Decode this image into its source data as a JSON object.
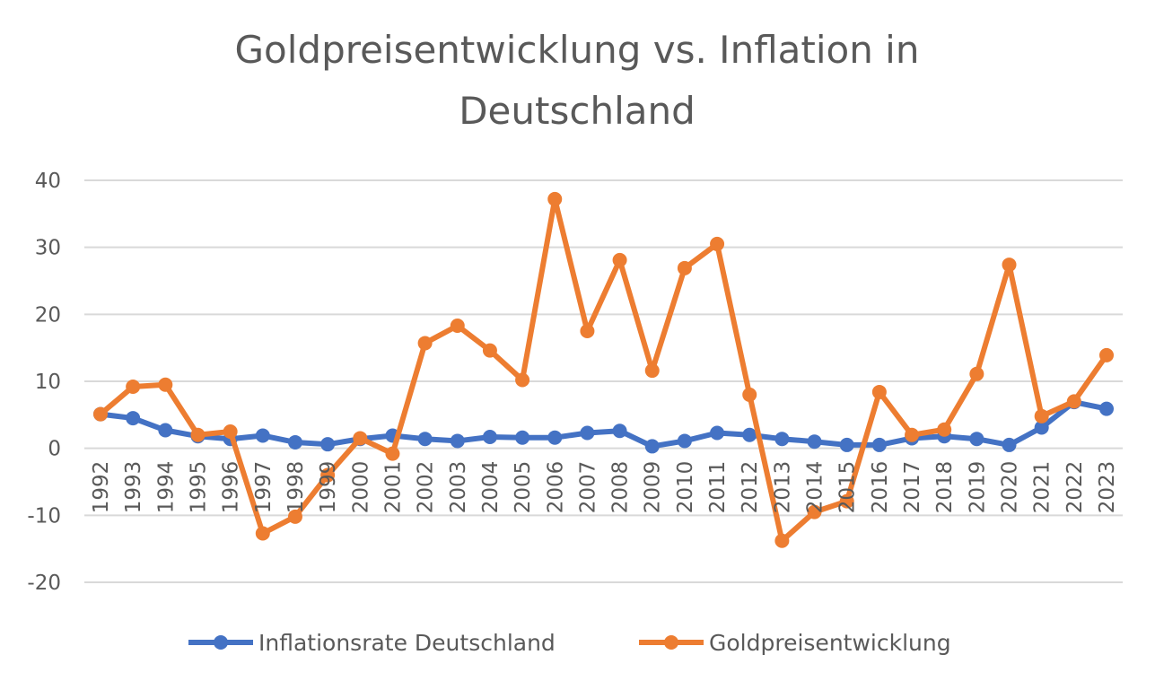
{
  "chart_data": {
    "type": "line",
    "title_lines": [
      "Goldpreisentwicklung vs. Inflation in",
      "Deutschland"
    ],
    "xlabel": "",
    "ylabel": "",
    "ylim": [
      -20,
      40
    ],
    "yticks": [
      -20,
      -10,
      0,
      10,
      20,
      30,
      40
    ],
    "grid": true,
    "legend_position": "bottom",
    "categories": [
      "1992",
      "1993",
      "1994",
      "1995",
      "1996",
      "1997",
      "1998",
      "1999",
      "2000",
      "2001",
      "2002",
      "2003",
      "2004",
      "2005",
      "2006",
      "2007",
      "2008",
      "2009",
      "2010",
      "2011",
      "2012",
      "2013",
      "2014",
      "2015",
      "2016",
      "2017",
      "2018",
      "2019",
      "2020",
      "2021",
      "2022",
      "2023"
    ],
    "series": [
      {
        "name": "Inflationsrate Deutschland",
        "color": "#4472C4",
        "values": [
          5.1,
          4.5,
          2.7,
          1.8,
          1.4,
          1.9,
          0.9,
          0.6,
          1.4,
          1.9,
          1.4,
          1.1,
          1.7,
          1.6,
          1.6,
          2.3,
          2.6,
          0.3,
          1.1,
          2.3,
          2.0,
          1.4,
          1.0,
          0.5,
          0.5,
          1.5,
          1.8,
          1.4,
          0.5,
          3.1,
          6.9,
          5.9
        ]
      },
      {
        "name": "Goldpreisentwicklung",
        "color": "#ED7D31",
        "values": [
          5.1,
          9.2,
          9.5,
          2.0,
          2.5,
          -12.7,
          -10.2,
          -4.0,
          1.5,
          -0.8,
          15.7,
          18.3,
          14.6,
          10.2,
          37.2,
          17.5,
          28.1,
          11.6,
          26.9,
          30.5,
          8.0,
          -13.8,
          -9.5,
          -7.9,
          8.4,
          2.0,
          2.8,
          11.1,
          27.4,
          4.8,
          7.0,
          13.9
        ]
      }
    ]
  }
}
